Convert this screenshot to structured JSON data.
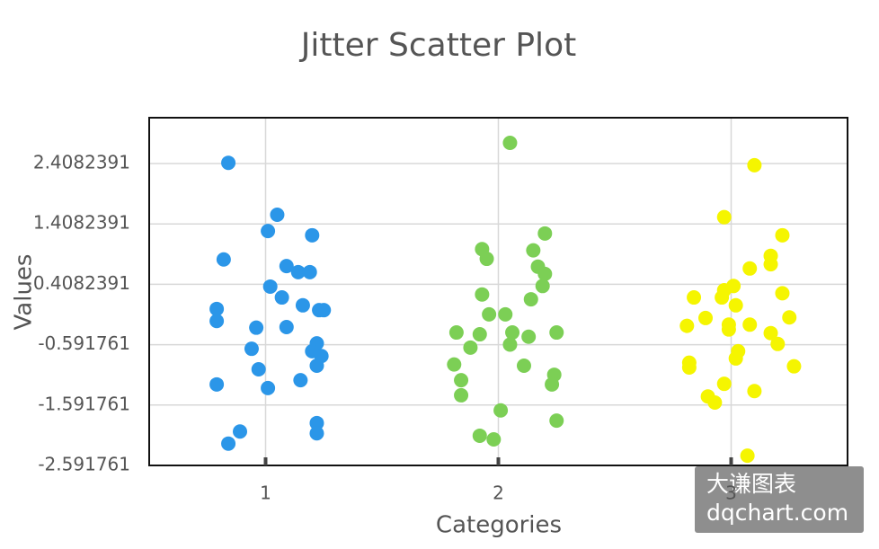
{
  "chart_data": {
    "type": "scatter",
    "title": "Jitter Scatter Plot",
    "x_label": "Categories",
    "y_label": "Values",
    "xlim": [
      0.5,
      3.5
    ],
    "xticks": [
      1,
      2,
      3
    ],
    "ylim": [
      -2.591761,
      3.167
    ],
    "yticks": [
      -2.591761,
      -1.591761,
      -0.591761,
      0.4082391,
      1.4082391,
      2.4082391
    ],
    "grid": true,
    "series": [
      {
        "color": "#2b96e8",
        "x": [
          0.84,
          1.05,
          1.01,
          1.2,
          0.82,
          1.09,
          1.14,
          1.19,
          1.02,
          1.07,
          1.16,
          0.79,
          1.23,
          1.25,
          0.79,
          0.96,
          1.09,
          1.22,
          0.94,
          1.2,
          1.24,
          0.97,
          1.22,
          1.15,
          0.79,
          1.01,
          1.22,
          1.22,
          0.89,
          0.84
        ],
        "values": [
          2.42,
          1.56,
          1.29,
          1.22,
          0.82,
          0.71,
          0.61,
          0.61,
          0.37,
          0.19,
          0.06,
          0.0,
          -0.02,
          -0.02,
          -0.2,
          -0.31,
          -0.3,
          -0.57,
          -0.66,
          -0.7,
          -0.78,
          -1.0,
          -0.94,
          -1.18,
          -1.25,
          -1.31,
          -1.89,
          -2.06,
          -2.03,
          -2.23
        ]
      },
      {
        "color": "#7ccf55",
        "x": [
          2.05,
          2.2,
          1.93,
          2.15,
          1.95,
          2.17,
          2.2,
          2.19,
          1.93,
          2.14,
          1.96,
          2.03,
          1.82,
          1.92,
          2.06,
          2.25,
          2.13,
          2.05,
          1.88,
          1.81,
          2.11,
          2.24,
          1.84,
          2.23,
          1.84,
          2.01,
          2.25,
          1.92,
          1.98
        ],
        "values": [
          2.75,
          1.25,
          0.99,
          0.97,
          0.83,
          0.7,
          0.58,
          0.38,
          0.24,
          0.16,
          -0.09,
          -0.09,
          -0.39,
          -0.42,
          -0.39,
          -0.39,
          -0.46,
          -0.59,
          -0.64,
          -0.92,
          -0.94,
          -1.09,
          -1.18,
          -1.25,
          -1.43,
          -1.68,
          -1.85,
          -2.1,
          -2.16
        ]
      },
      {
        "color": "#f5f500",
        "x": [
          3.1,
          2.97,
          3.22,
          3.17,
          3.17,
          3.08,
          3.01,
          2.97,
          2.84,
          3.22,
          2.96,
          3.02,
          3.25,
          2.89,
          3.08,
          2.99,
          2.81,
          2.99,
          3.17,
          3.2,
          3.03,
          3.02,
          2.82,
          2.82,
          3.27,
          2.97,
          3.1,
          2.9,
          2.93,
          3.07
        ],
        "values": [
          2.38,
          1.52,
          1.22,
          0.88,
          0.74,
          0.67,
          0.38,
          0.31,
          0.19,
          0.26,
          0.19,
          0.06,
          -0.14,
          -0.15,
          -0.26,
          -0.26,
          -0.28,
          -0.34,
          -0.4,
          -0.58,
          -0.7,
          -0.82,
          -0.89,
          -0.97,
          -0.95,
          -1.24,
          -1.36,
          -1.45,
          -1.55,
          -2.43
        ]
      }
    ]
  },
  "watermark": {
    "line1": "大谦图表",
    "line2": "dqchart.com"
  }
}
